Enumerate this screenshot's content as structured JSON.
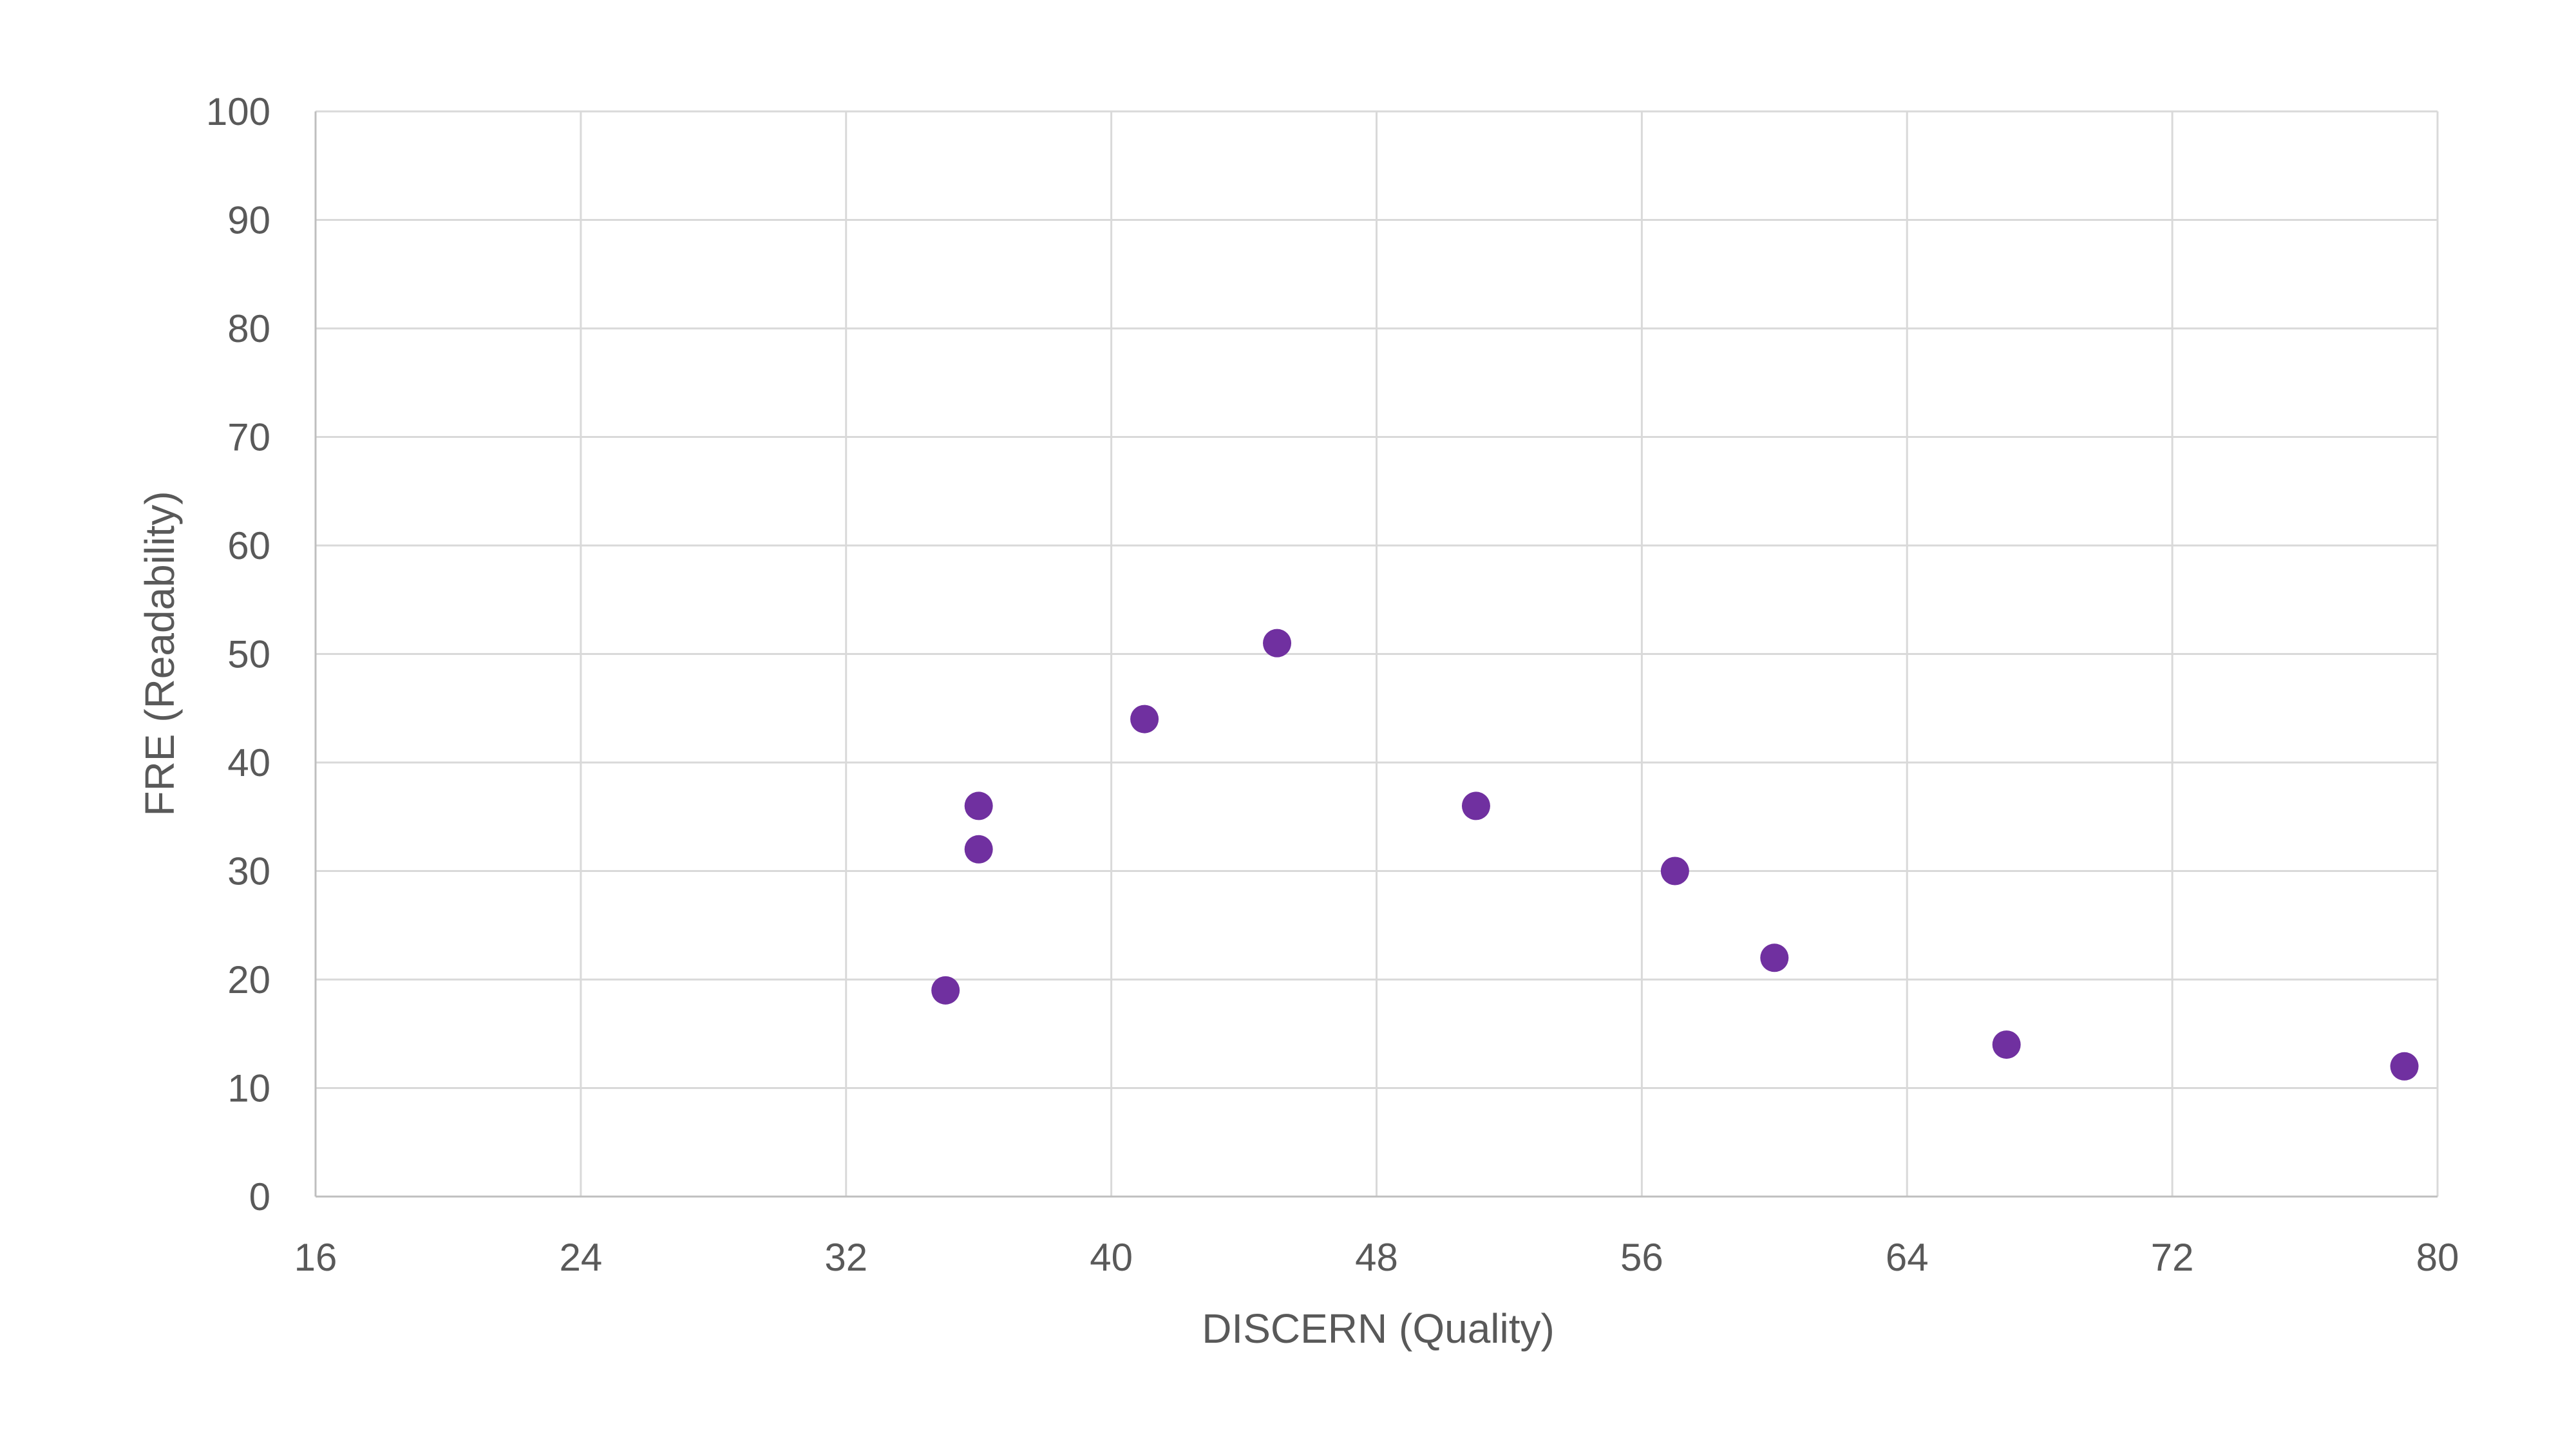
{
  "chart_data": {
    "type": "scatter",
    "title": "",
    "xlabel": "DISCERN (Quality)",
    "ylabel": "FRE (Readability)",
    "xlim": [
      16,
      80
    ],
    "ylim": [
      0,
      100
    ],
    "x_ticks": [
      16,
      24,
      32,
      40,
      48,
      56,
      64,
      72,
      80
    ],
    "y_ticks": [
      0,
      10,
      20,
      30,
      40,
      50,
      60,
      70,
      80,
      90,
      100
    ],
    "grid": true,
    "legend": "none",
    "marker_color": "#7030a0",
    "series": [
      {
        "points": [
          {
            "x": 35,
            "y": 19
          },
          {
            "x": 36,
            "y": 32
          },
          {
            "x": 36,
            "y": 36
          },
          {
            "x": 41,
            "y": 44
          },
          {
            "x": 45,
            "y": 51
          },
          {
            "x": 51,
            "y": 36
          },
          {
            "x": 57,
            "y": 30
          },
          {
            "x": 60,
            "y": 22
          },
          {
            "x": 67,
            "y": 14
          },
          {
            "x": 79,
            "y": 12
          }
        ]
      }
    ]
  }
}
